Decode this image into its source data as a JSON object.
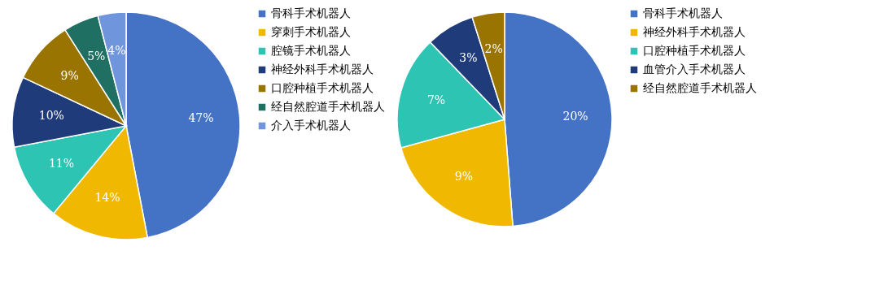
{
  "chart_data": [
    {
      "type": "pie",
      "categories": [
        "骨科手术机器人",
        "穿刺手术机器人",
        "腔镜手术机器人",
        "神经外科手术机器人",
        "口腔种植手术机器人",
        "经自然腔道手术机器人",
        "介入手术机器人"
      ],
      "values": [
        47,
        14,
        11,
        10,
        9,
        5,
        4
      ],
      "value_labels": [
        "47%",
        "14%",
        "11%",
        "10%",
        "9%",
        "5%",
        "4%"
      ],
      "colors": [
        "#4472c4",
        "#f0b800",
        "#2ec4b4",
        "#1f3b7a",
        "#9a7400",
        "#1f6f63",
        "#6f95dc"
      ],
      "legend": "right"
    },
    {
      "type": "pie",
      "categories": [
        "骨科手术机器人",
        "神经外科手术机器人",
        "口腔种植手术机器人",
        "血管介入手术机器人",
        "经自然腔道手术机器人"
      ],
      "values": [
        20,
        9,
        7,
        3,
        2
      ],
      "value_labels": [
        "20%",
        "9%",
        "7%",
        "3%",
        "2%"
      ],
      "colors": [
        "#4472c4",
        "#f0b800",
        "#2ec4b4",
        "#1f3b7a",
        "#9a7400"
      ],
      "legend": "right"
    }
  ]
}
